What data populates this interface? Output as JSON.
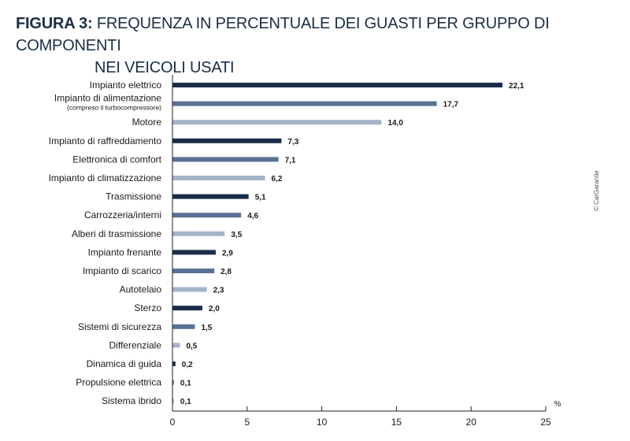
{
  "title": {
    "figure_label": "FIGURA 3:",
    "line1": "FREQUENZA IN PERCENTUALE DEI GUASTI PER GRUPPO DI COMPONENTI",
    "line2": "NEI VEICOLI USATI"
  },
  "credit": "© CarGarantie",
  "chart_data": {
    "type": "bar",
    "orientation": "horizontal",
    "categories": [
      "Impianto elettrico",
      "Impianto di alimentazione",
      "Motore",
      "Impianto di raffreddamento",
      "Elettronica di comfort",
      "Impianto di climatizzazione",
      "Trasmissione",
      "Carrozzeria/interni",
      "Alberi di trasmissione",
      "Impianto frenante",
      "Impianto di scarico",
      "Autotelaio",
      "Sterzo",
      "Sistemi di sicurezza",
      "Differenziale",
      "Dinamica di guida",
      "Propulsione elettrica",
      "Sistema ibrido"
    ],
    "category_notes": [
      "",
      "(compreso il turbocompressore)",
      "",
      "",
      "",
      "",
      "",
      "",
      "",
      "",
      "",
      "",
      "",
      "",
      "",
      "",
      "",
      ""
    ],
    "values": [
      22.1,
      17.7,
      14.0,
      7.3,
      7.1,
      6.2,
      5.1,
      4.6,
      3.5,
      2.9,
      2.8,
      2.3,
      2.0,
      1.5,
      0.5,
      0.2,
      0.1,
      0.1
    ],
    "value_labels": [
      "22,1",
      "17,7",
      "14,0",
      "7,3",
      "7,1",
      "6,2",
      "5,1",
      "4,6",
      "3,5",
      "2,9",
      "2,8",
      "2,3",
      "2,0",
      "1,5",
      "0,5",
      "0,2",
      "0,1",
      "0,1"
    ],
    "bar_colors": [
      "#1b2d47",
      "#5a7195",
      "#a3b4c9"
    ],
    "xlim": [
      0,
      25
    ],
    "xticks": [
      0,
      5,
      10,
      15,
      20,
      25
    ],
    "xunit": "%",
    "grid": false
  }
}
